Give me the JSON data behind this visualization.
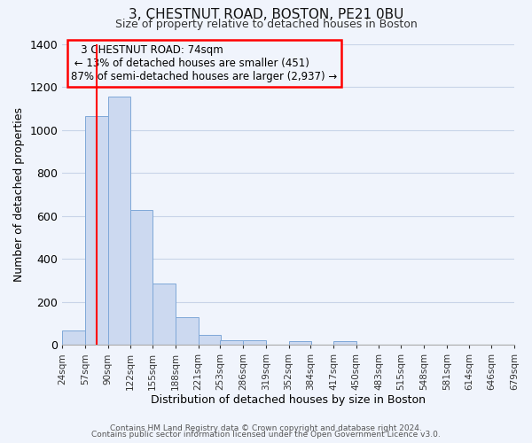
{
  "title": "3, CHESTNUT ROAD, BOSTON, PE21 0BU",
  "subtitle": "Size of property relative to detached houses in Boston",
  "xlabel": "Distribution of detached houses by size in Boston",
  "ylabel": "Number of detached properties",
  "bin_labels": [
    "24sqm",
    "57sqm",
    "90sqm",
    "122sqm",
    "155sqm",
    "188sqm",
    "221sqm",
    "253sqm",
    "286sqm",
    "319sqm",
    "352sqm",
    "384sqm",
    "417sqm",
    "450sqm",
    "483sqm",
    "515sqm",
    "548sqm",
    "581sqm",
    "614sqm",
    "646sqm",
    "679sqm"
  ],
  "bar_values": [
    65,
    1065,
    1155,
    630,
    285,
    130,
    47,
    20,
    20,
    0,
    17,
    0,
    17,
    0,
    0,
    0,
    0,
    0,
    0,
    0
  ],
  "bar_color": "#ccd9f0",
  "bar_edge_color": "#7fa8d8",
  "red_line_x": 74,
  "bin_edges": [
    24,
    57,
    90,
    122,
    155,
    188,
    221,
    253,
    286,
    319,
    352,
    384,
    417,
    450,
    483,
    515,
    548,
    581,
    614,
    646,
    679
  ],
  "ylim": [
    0,
    1400
  ],
  "yticks": [
    0,
    200,
    400,
    600,
    800,
    1000,
    1200,
    1400
  ],
  "annotation_title": "3 CHESTNUT ROAD: 74sqm",
  "annotation_line1": "← 13% of detached houses are smaller (451)",
  "annotation_line2": "87% of semi-detached houses are larger (2,937) →",
  "footer1": "Contains HM Land Registry data © Crown copyright and database right 2024.",
  "footer2": "Contains public sector information licensed under the Open Government Licence v3.0.",
  "background_color": "#f0f4fc",
  "grid_color": "#c8d4e8",
  "title_fontsize": 11,
  "subtitle_fontsize": 9
}
